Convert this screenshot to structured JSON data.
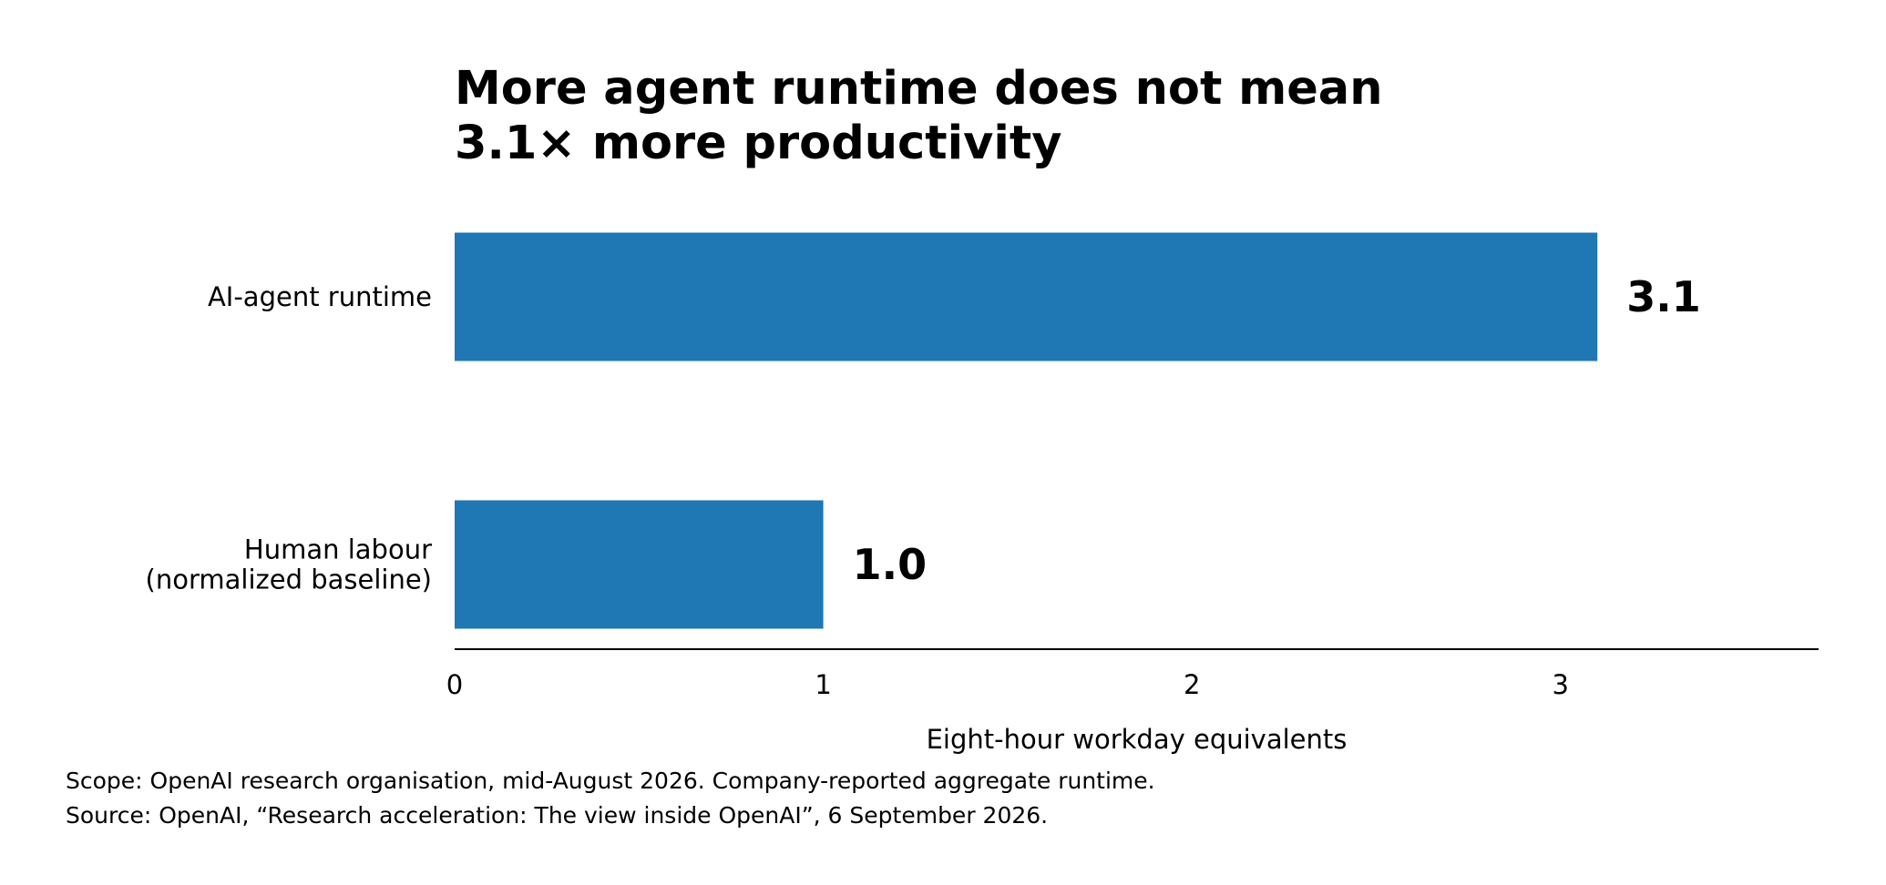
{
  "chart_data": {
    "type": "bar",
    "orientation": "horizontal",
    "title": [
      "More agent runtime does not mean",
      "3.1× more productivity"
    ],
    "categories": [
      [
        "AI-agent runtime"
      ],
      [
        "Human labour",
        "(normalized baseline)"
      ]
    ],
    "values": [
      3.1,
      1.0
    ],
    "value_labels": [
      "3.1",
      "1.0"
    ],
    "xlabel": "Eight-hour workday equivalents",
    "ylabel": "",
    "xlim": [
      0,
      3.7
    ],
    "xticks": [
      0,
      1,
      2,
      3
    ],
    "xtick_labels": [
      "0",
      "1",
      "2",
      "3"
    ],
    "grid": false,
    "bar_color": "#1f77b4"
  },
  "notes": [
    "Scope: OpenAI research organisation, mid-August 2026. Company-reported aggregate runtime.",
    "Source: OpenAI, “Research acceleration: The view inside OpenAI”, 6 September 2026."
  ]
}
